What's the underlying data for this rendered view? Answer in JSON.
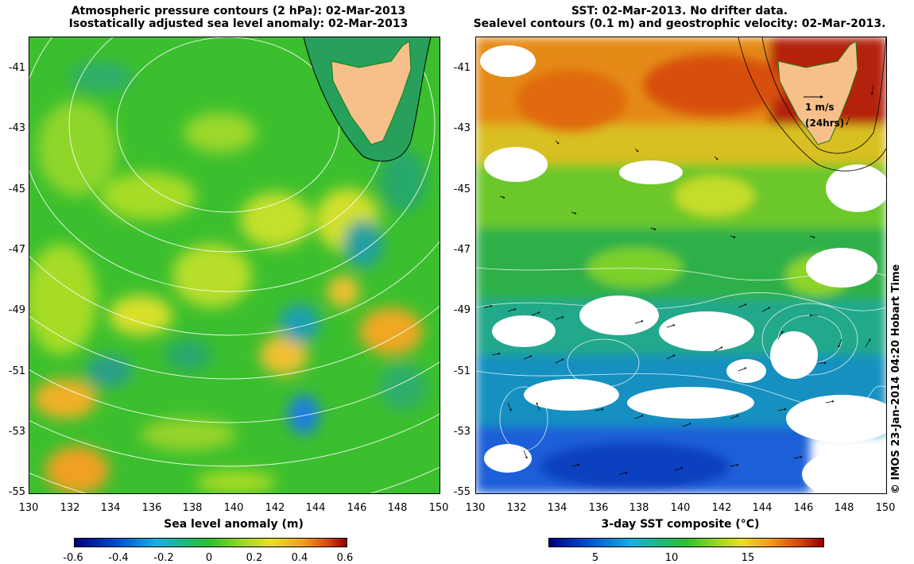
{
  "left_panel": {
    "title_line1": "Atmospheric pressure contours (2 hPa): 02-Mar-2013",
    "title_line2": "Isostatically adjusted sea level anomaly: 02-Mar-2013",
    "x_ticks": [
      "130",
      "132",
      "134",
      "136",
      "138",
      "140",
      "142",
      "144",
      "146",
      "148",
      "150"
    ],
    "y_ticks": [
      "-41",
      "-43",
      "-45",
      "-47",
      "-49",
      "-51",
      "-53",
      "-55"
    ],
    "colorbar_label": "Sea level anomaly (m)",
    "colorbar_ticks": [
      "-0.6",
      "-0.4",
      "-0.2",
      "0",
      "0.2",
      "0.4",
      "0.6"
    ],
    "colorbar_range": [
      -0.6,
      0.6
    ]
  },
  "right_panel": {
    "title_line1": "SST: 02-Mar-2013. No drifter data.",
    "title_line2": "Sealevel contours (0.1 m) and geostrophic velocity: 02-Mar-2013.",
    "x_ticks": [
      "130",
      "132",
      "134",
      "136",
      "138",
      "140",
      "142",
      "144",
      "146",
      "148",
      "150"
    ],
    "y_ticks": [
      "-41",
      "-43",
      "-45",
      "-47",
      "-49",
      "-51",
      "-53",
      "-55"
    ],
    "colorbar_label": "3-day SST composite (°C)",
    "colorbar_ticks": [
      "5",
      "10",
      "15"
    ],
    "colorbar_range": [
      1.5,
      19.5
    ],
    "velocity_scale_line1": "1 m/s",
    "velocity_scale_line2": "(24hrs)"
  },
  "copyright": "© IMOS 23-Jan-2014 04:20 Hobart Time",
  "colors": {
    "land": "#f7c08a",
    "sla_base": "#3cbf2e",
    "sst_warm": "#e07a10",
    "sst_cold": "#1a6fd8",
    "contour": "#ffffff"
  }
}
